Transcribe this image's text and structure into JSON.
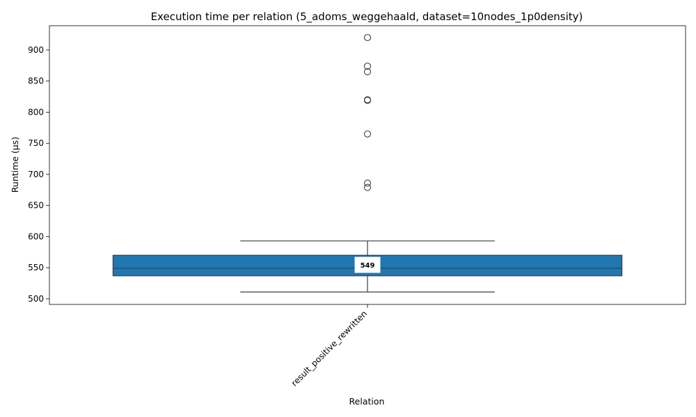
{
  "chart_data": {
    "type": "box",
    "title": "Execution time per relation (5_adoms_weggehaald, dataset=10nodes_1p0density)",
    "xlabel": "Relation",
    "ylabel": "Runtime (µs)",
    "categories": [
      "result_positive_rewritten"
    ],
    "ylim": [
      491,
      939
    ],
    "yticks": [
      500,
      550,
      600,
      650,
      700,
      750,
      800,
      850,
      900
    ],
    "grid": false,
    "legend": "none",
    "boxes": [
      {
        "category": "result_positive_rewritten",
        "whisker_low": 511,
        "q1": 537,
        "median": 549,
        "q3": 570,
        "whisker_high": 593,
        "outliers": [
          679,
          686,
          765,
          819,
          820,
          865,
          874,
          920
        ],
        "median_label": "549",
        "color": "#1f77b4"
      }
    ]
  }
}
